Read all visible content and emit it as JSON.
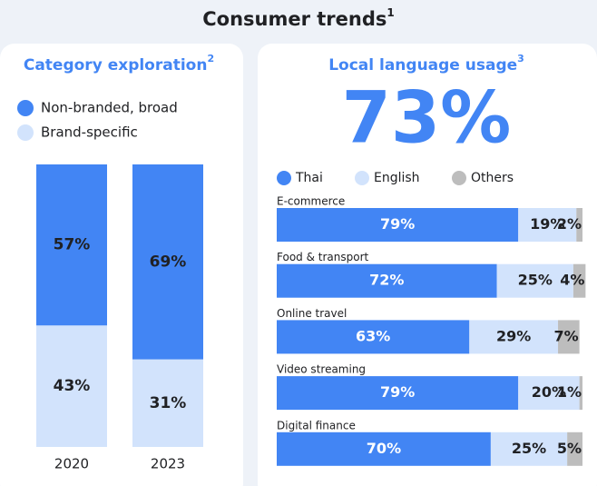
{
  "header": {
    "title": "Consumer trends",
    "footnote": "1"
  },
  "chart_data": [
    {
      "type": "stacked-bar",
      "title": "Category exploration",
      "footnote": "2",
      "categories": [
        "2020",
        "2023"
      ],
      "ylim": [
        0,
        100
      ],
      "series": [
        {
          "name": "Non-branded, broad",
          "color": "#4285f4",
          "values": [
            57,
            69
          ],
          "value_labels": [
            "57%",
            "69%"
          ]
        },
        {
          "name": "Brand-specific",
          "color": "#d2e3fc",
          "values": [
            43,
            31
          ],
          "value_labels": [
            "43%",
            "31%"
          ]
        }
      ]
    },
    {
      "type": "stacked-barh",
      "title": "Local language usage",
      "footnote": "3",
      "highlight": "73%",
      "categories": [
        "E-commerce",
        "Food & transport",
        "Online travel",
        "Video streaming",
        "Digital finance"
      ],
      "xlim": [
        0,
        100
      ],
      "series": [
        {
          "name": "Thai",
          "color": "#4285f4",
          "values": [
            79,
            72,
            63,
            79,
            70
          ],
          "value_labels": [
            "79%",
            "72%",
            "63%",
            "79%",
            "70%"
          ]
        },
        {
          "name": "English",
          "color": "#d2e3fc",
          "values": [
            19,
            25,
            29,
            20,
            25
          ],
          "value_labels": [
            "19%",
            "25%",
            "29%",
            "20%",
            "25%"
          ]
        },
        {
          "name": "Others",
          "color": "#bdbdbd",
          "values": [
            2,
            4,
            7,
            1,
            5
          ],
          "value_labels": [
            "2%",
            "4%",
            "7%",
            "1%",
            "5%"
          ]
        }
      ]
    }
  ]
}
